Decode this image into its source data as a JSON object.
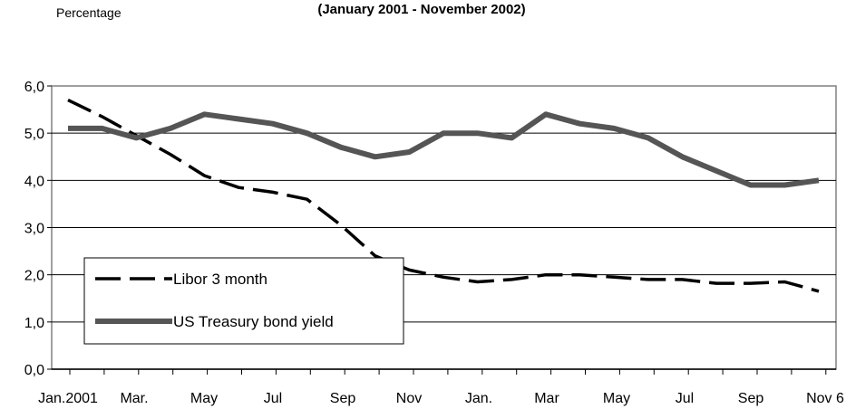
{
  "chart_data": {
    "type": "line",
    "title": "(January 2001 - November 2002)",
    "ylabel": "Percentage",
    "xlabel": "",
    "ylim": [
      0,
      6
    ],
    "yticks": [
      "0,0",
      "1,0",
      "2,0",
      "3,0",
      "4,0",
      "5,0",
      "6,0"
    ],
    "xticks": [
      "Jan.2001",
      "Mar.",
      "May",
      "Jul",
      "Sep",
      "Nov",
      "Jan.",
      "Mar",
      "May",
      "Jul",
      "Sep",
      "Nov 6"
    ],
    "grid": true,
    "legend_position": "bottom-left",
    "x": [
      "2001-01",
      "2001-02",
      "2001-03",
      "2001-04",
      "2001-05",
      "2001-06",
      "2001-07",
      "2001-08",
      "2001-09",
      "2001-10",
      "2001-11",
      "2001-12",
      "2002-01",
      "2002-02",
      "2002-03",
      "2002-04",
      "2002-05",
      "2002-06",
      "2002-07",
      "2002-08",
      "2002-09",
      "2002-10",
      "2002-11"
    ],
    "series": [
      {
        "name": "Libor 3 month",
        "style": "dashed",
        "color": "#000000",
        "values": [
          5.7,
          5.35,
          4.95,
          4.55,
          4.1,
          3.85,
          3.75,
          3.6,
          3.05,
          2.4,
          2.1,
          1.95,
          1.85,
          1.9,
          2.0,
          2.0,
          1.95,
          1.9,
          1.9,
          1.82,
          1.82,
          1.85,
          1.65
        ]
      },
      {
        "name": "US Treasury bond yield",
        "style": "solid",
        "color": "#555555",
        "values": [
          5.1,
          5.1,
          4.9,
          5.1,
          5.4,
          5.3,
          5.2,
          5.0,
          4.7,
          4.5,
          4.6,
          5.0,
          5.0,
          4.9,
          5.4,
          5.2,
          5.1,
          4.9,
          4.5,
          4.2,
          3.9,
          3.9,
          4.0
        ]
      }
    ]
  }
}
